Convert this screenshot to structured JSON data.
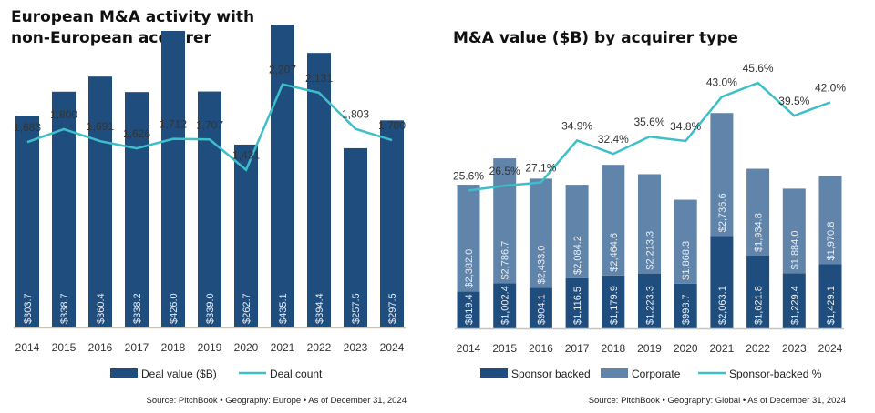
{
  "chart_data": [
    {
      "type": "bar+line",
      "title": "European M&A activity with non-European acquirer",
      "title_lines": [
        "European M&A activity with",
        "non-European acquirer"
      ],
      "categories": [
        "2014",
        "2015",
        "2016",
        "2017",
        "2018",
        "2019",
        "2020",
        "2021",
        "2022",
        "2023",
        "2024"
      ],
      "series": [
        {
          "name": "Deal value ($B)",
          "type": "bar",
          "color": "#1f4e7e",
          "axis": "left",
          "values": [
            303.7,
            338.7,
            360.4,
            338.2,
            426.0,
            339.0,
            262.7,
            435.1,
            394.4,
            257.5,
            297.5
          ],
          "labels": [
            "$303.7",
            "$338.7",
            "$360.4",
            "$338.2",
            "$426.0",
            "$339.0",
            "$262.7",
            "$435.1",
            "$394.4",
            "$257.5",
            "$297.5"
          ]
        },
        {
          "name": "Deal count",
          "type": "line",
          "color": "#3dbfc9",
          "axis": "right",
          "values": [
            1683,
            1800,
            1691,
            1626,
            1712,
            1707,
            1431,
            2207,
            2131,
            1803,
            1700
          ],
          "labels": [
            "1,683",
            "1,800",
            "1,691",
            "1,626",
            "1,712",
            "1,707",
            "1,431",
            "2,207",
            "2,131",
            "1,803",
            "1,700"
          ]
        }
      ],
      "ylim": [
        55,
        447
      ],
      "y2lim": [
        0,
        2477
      ],
      "grid": false,
      "legend": "bottom",
      "source": "Source: PitchBook  •  Geography: Europe  •  As of December 31, 2024"
    },
    {
      "type": "stacked-bar+line",
      "title": "M&A value ($B) by acquirer type",
      "categories": [
        "2014",
        "2015",
        "2016",
        "2017",
        "2018",
        "2019",
        "2020",
        "2021",
        "2022",
        "2023",
        "2024"
      ],
      "series": [
        {
          "name": "Sponsor backed",
          "type": "bar",
          "color": "#1f4e7e",
          "axis": "left",
          "values": [
            819.4,
            1002.4,
            904.1,
            1116.5,
            1179.9,
            1223.3,
            998.7,
            2063.1,
            1621.8,
            1229.4,
            1429.1
          ],
          "labels": [
            "$819.4",
            "$1,002.4",
            "$904.1",
            "$1,116.5",
            "$1,179.9",
            "$1,223.3",
            "$998.7",
            "$2,063.1",
            "$1,621.8",
            "$1,229.4",
            "$1,429.1"
          ]
        },
        {
          "name": "Corporate",
          "type": "bar",
          "color": "#6185aa",
          "axis": "left",
          "values": [
            2382.0,
            2786.7,
            2433.0,
            2084.2,
            2464.6,
            2213.3,
            1868.3,
            2736.6,
            1934.8,
            1884.0,
            1970.8
          ],
          "labels": [
            "$2,382.0",
            "$2,786.7",
            "$2,433.0",
            "$2,084.2",
            "$2,464.6",
            "$2,213.3",
            "$1,868.3",
            "$2,736.6",
            "$1,934.8",
            "$1,884.0",
            "$1,970.8"
          ]
        },
        {
          "name": "Sponsor-backed %",
          "type": "line",
          "color": "#3dbfc9",
          "axis": "right",
          "values": [
            25.6,
            26.5,
            27.1,
            34.9,
            32.4,
            35.6,
            34.8,
            43.0,
            45.6,
            39.5,
            42.0
          ],
          "labels": [
            "25.6%",
            "26.5%",
            "27.1%",
            "34.9%",
            "32.4%",
            "35.6%",
            "34.8%",
            "43.0%",
            "45.6%",
            "39.5%",
            "42.0%"
          ]
        }
      ],
      "ylim": [
        0,
        6000
      ],
      "y2lim": [
        0,
        50
      ],
      "grid": false,
      "legend": "bottom",
      "source": "Source: PitchBook  •  Geography: Global  •  As of December 31, 2024"
    }
  ]
}
